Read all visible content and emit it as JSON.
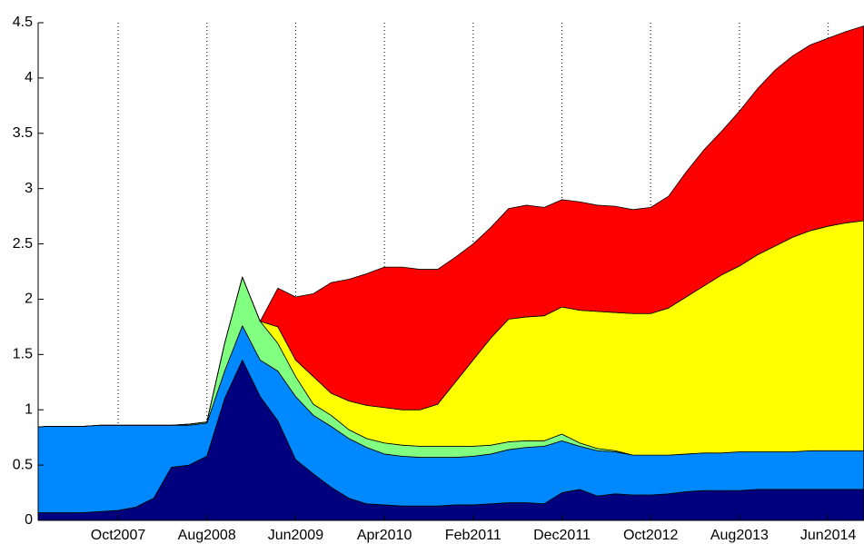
{
  "chart_data": {
    "type": "stacked_area",
    "categories": [
      null,
      null,
      null,
      null,
      null,
      "Oct2007",
      null,
      null,
      null,
      null,
      "Aug2008",
      null,
      null,
      null,
      null,
      "Jun2009",
      null,
      null,
      null,
      null,
      "Apr2010",
      null,
      null,
      null,
      null,
      "Feb2011",
      null,
      null,
      null,
      null,
      "Dec2011",
      null,
      null,
      null,
      null,
      "Oct2012",
      null,
      null,
      null,
      null,
      "Aug2013",
      null,
      null,
      null,
      null,
      "Jun2014",
      null,
      null
    ],
    "series": [
      {
        "color": "#00007f",
        "values": [
          0.07,
          0.07,
          0.07,
          0.07,
          0.08,
          0.09,
          0.12,
          0.2,
          0.48,
          0.5,
          0.58,
          1.1,
          1.45,
          1.12,
          0.9,
          0.55,
          0.42,
          0.3,
          0.2,
          0.15,
          0.14,
          0.13,
          0.13,
          0.13,
          0.14,
          0.14,
          0.15,
          0.16,
          0.16,
          0.15,
          0.25,
          0.28,
          0.22,
          0.24,
          0.23,
          0.23,
          0.24,
          0.26,
          0.27,
          0.27,
          0.27,
          0.28,
          0.28,
          0.28,
          0.28,
          0.28,
          0.28,
          0.28
        ]
      },
      {
        "color": "#0088ff",
        "values": [
          0.77,
          0.78,
          0.78,
          0.78,
          0.78,
          0.77,
          0.74,
          0.66,
          0.38,
          0.36,
          0.3,
          0.25,
          0.31,
          0.33,
          0.45,
          0.57,
          0.53,
          0.55,
          0.54,
          0.51,
          0.46,
          0.45,
          0.44,
          0.44,
          0.43,
          0.44,
          0.45,
          0.48,
          0.5,
          0.52,
          0.47,
          0.39,
          0.41,
          0.38,
          0.36,
          0.36,
          0.35,
          0.34,
          0.34,
          0.34,
          0.35,
          0.34,
          0.34,
          0.34,
          0.35,
          0.35,
          0.35,
          0.35
        ]
      },
      {
        "color": "#80ff80",
        "values": [
          0,
          0,
          0,
          0,
          0,
          0,
          0,
          0,
          0,
          0.01,
          0.01,
          0.25,
          0.44,
          0.35,
          0.25,
          0.18,
          0.1,
          0.1,
          0.08,
          0.08,
          0.1,
          0.1,
          0.1,
          0.1,
          0.1,
          0.09,
          0.08,
          0.07,
          0.06,
          0.05,
          0.06,
          0.03,
          0.02,
          0.01,
          0,
          0,
          0,
          0,
          0,
          0,
          0,
          0,
          0,
          0,
          0,
          0,
          0,
          0
        ]
      },
      {
        "color": "#ffff00",
        "values": [
          0,
          0,
          0,
          0,
          0,
          0,
          0,
          0,
          0,
          0,
          0,
          0,
          0,
          0,
          0.15,
          0.15,
          0.25,
          0.2,
          0.26,
          0.3,
          0.32,
          0.32,
          0.33,
          0.38,
          0.58,
          0.78,
          0.97,
          1.11,
          1.12,
          1.13,
          1.15,
          1.2,
          1.24,
          1.25,
          1.28,
          1.28,
          1.33,
          1.42,
          1.51,
          1.61,
          1.68,
          1.78,
          1.86,
          1.94,
          1.99,
          2.03,
          2.06,
          2.08
        ]
      },
      {
        "color": "#ff0000",
        "values": [
          0,
          0,
          0,
          0,
          0,
          0,
          0,
          0,
          0,
          0,
          0,
          0,
          0,
          0,
          0.35,
          0.57,
          0.75,
          1.0,
          1.1,
          1.19,
          1.27,
          1.29,
          1.27,
          1.22,
          1.13,
          1.05,
          1.0,
          1.0,
          1.01,
          0.98,
          0.97,
          0.98,
          0.96,
          0.96,
          0.94,
          0.96,
          1.01,
          1.13,
          1.23,
          1.3,
          1.4,
          1.5,
          1.59,
          1.64,
          1.68,
          1.7,
          1.73,
          1.76
        ]
      }
    ],
    "ylim": [
      0,
      4.5
    ],
    "yticks": [
      0,
      0.5,
      1,
      1.5,
      2,
      2.5,
      3,
      3.5,
      4,
      4.5
    ],
    "grid": true
  }
}
